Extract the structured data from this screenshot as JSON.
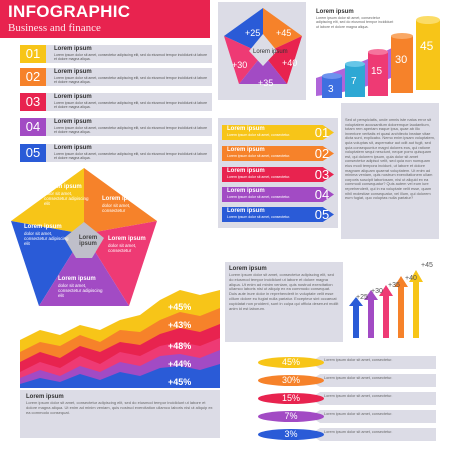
{
  "header": {
    "title": "INFOGRAPHIC",
    "subtitle": "Business and finance"
  },
  "colors": {
    "pink": "#e8234f",
    "yellow": "#f7c518",
    "orange": "#f6822a",
    "magenta": "#ee3a74",
    "purple": "#a24bc4",
    "blue": "#2a5bd7",
    "teal": "#2ea8d4",
    "grey": "#dcdce6"
  },
  "list": [
    {
      "num": "01",
      "title": "Lorem ipsum",
      "text": "Lorem ipsum dolor sit amet, consectetur adipiscing elit, sed do eiusmod tempor incididunt ut labore et dolore magna aliqua."
    },
    {
      "num": "02",
      "title": "Lorem ipsum",
      "text": "Lorem ipsum dolor sit amet, consectetur adipiscing elit, sed do eiusmod tempor incididunt ut labore et dolore magna aliqua."
    },
    {
      "num": "03",
      "title": "Lorem ipsum",
      "text": "Lorem ipsum dolor sit amet, consectetur adipiscing elit, sed do eiusmod tempor incididunt ut labore et dolore magna aliqua."
    },
    {
      "num": "04",
      "title": "Lorem ipsum",
      "text": "Lorem ipsum dolor sit amet, consectetur adipiscing elit, sed do eiusmod tempor incididunt ut labore et dolore magna aliqua."
    },
    {
      "num": "05",
      "title": "Lorem ipsum",
      "text": "Lorem ipsum dolor sit amet, consectetur adipiscing elit, sed do eiusmod tempor incididunt ut labore et dolore magna aliqua."
    }
  ],
  "pentagon_top": {
    "center": "Lorem ipsum",
    "values": [
      "+25",
      "+45",
      "+40",
      "+35",
      "+30"
    ]
  },
  "top_text": {
    "title": "Lorem ipsum",
    "text": "Lorem ipsum dolor sit amet, consectetur adipiscing elit, sed do eiusmod tempor incididunt ut labore et dolore magna aliqua."
  },
  "cylinders": {
    "values": [
      "3",
      "7",
      "15",
      "30",
      "45"
    ]
  },
  "arrows": [
    {
      "num": "01",
      "title": "Lorem ipsum",
      "text": "Lorem ipsum dolor sit amet, consectetur."
    },
    {
      "num": "02",
      "title": "Lorem ipsum",
      "text": "Lorem ipsum dolor sit amet, consectetur."
    },
    {
      "num": "03",
      "title": "Lorem ipsum",
      "text": "Lorem ipsum dolor sit amet, consectetur."
    },
    {
      "num": "04",
      "title": "Lorem ipsum",
      "text": "Lorem ipsum dolor sit amet, consectetur."
    },
    {
      "num": "05",
      "title": "Lorem ipsum",
      "text": "Lorem ipsum dolor sit amet, consectetur."
    }
  ],
  "right_text": "Sed ut perspiciatis, unde omnis iste natus error sit voluptatem accusantium doloremque laudantium, totam rem aperiam eaque ipsa, quae ab illo inventore veritatis et quasi architecto beatae vitae dicta sunt, explicabo. Nemo enim ipsam voluptatem, quia voluptas sit, aspernatur aut odit aut fugit, sed quia consequuntur magni dolores eos, qui ratione voluptatem sequi nesciunt, neque porro quisquam est, qui dolorem ipsum, quia dolor sit amet consectetur adipisci velit, sed quia non numquam eius modi tempora incidunt, ut labore et dolore magnam aliquam quaerat voluptatem. Ut enim ad minima veniam, quis nostrum exercitationem ullam corporis suscipit laboriosam, nisi ut aliquid ex ea commodi consequatur? Quis autem vel eum iure reprehenderit, qui in ea voluptate velit esse, quam nihil molestiae consequatur, vel illum, qui dolorem eum fugiat, quo voluptas nulla pariatur?",
  "pentagon_big": {
    "labels": [
      {
        "title": "Lorem ipsum",
        "text": "dolor sit amet, consectetur adipiscing elit"
      },
      {
        "title": "Lorem ipsum",
        "text": "dolor sit amet, consectetur"
      },
      {
        "title": "Lorem ipsum",
        "text": "dolor sit amet, consectetur adipiscing elit"
      },
      {
        "title": "Lorem ipsum",
        "text": "dolor sit amet, consectetur"
      },
      {
        "title": "Lorem ipsum",
        "text": "dolor sit amet, consectetur adipiscing elit"
      }
    ],
    "center": "Lorem ipsum"
  },
  "mid_text": {
    "title": "Lorem ipsum",
    "text": "Lorem ipsum dolor sit amet, consectetur adipiscing elit, sed do eiusmod tempor incididunt ut labore et dolore magna aliqua. Ut enim ad minim veniam, quis nostrud exercitation ullamco laboris nisi ut aliquip ex ea commodo consequat. Duis aute irure dolor in reprehenderit in voluptate velit esse cillum dolore eu fugiat nulla pariatur. Excepteur sint occaecat cupidatat non proident, sunt in culpa qui officia deserunt mollit anim id est laborum."
  },
  "up_arrows": {
    "values": [
      "+25",
      "+30",
      "+35",
      "+40",
      "+45"
    ]
  },
  "waves": {
    "values": [
      "+45%",
      "+43%",
      "+48%",
      "+44%",
      "+45%"
    ]
  },
  "bottom_text": {
    "title": "Lorem ipsum",
    "text": "Lorem ipsum dolor sit amet, consectetur adipiscing elit, sed do eiusmod tempor incididunt ut labore et dolore magna aliqua. Ut enim ad minim veniam, quis nostrud exercitation ullamco laboris nisi ut aliquip ex ea commodo consequat."
  },
  "percent_rows": [
    {
      "value": "45%",
      "text": "Lorem ipsum dolor sit amet, consectetur."
    },
    {
      "value": "30%",
      "text": "Lorem ipsum dolor sit amet, consectetur."
    },
    {
      "value": "15%",
      "text": "Lorem ipsum dolor sit amet, consectetur."
    },
    {
      "value": "7%",
      "text": "Lorem ipsum dolor sit amet, consectetur."
    },
    {
      "value": "3%",
      "text": "Lorem ipsum dolor sit amet, consectetur."
    }
  ]
}
